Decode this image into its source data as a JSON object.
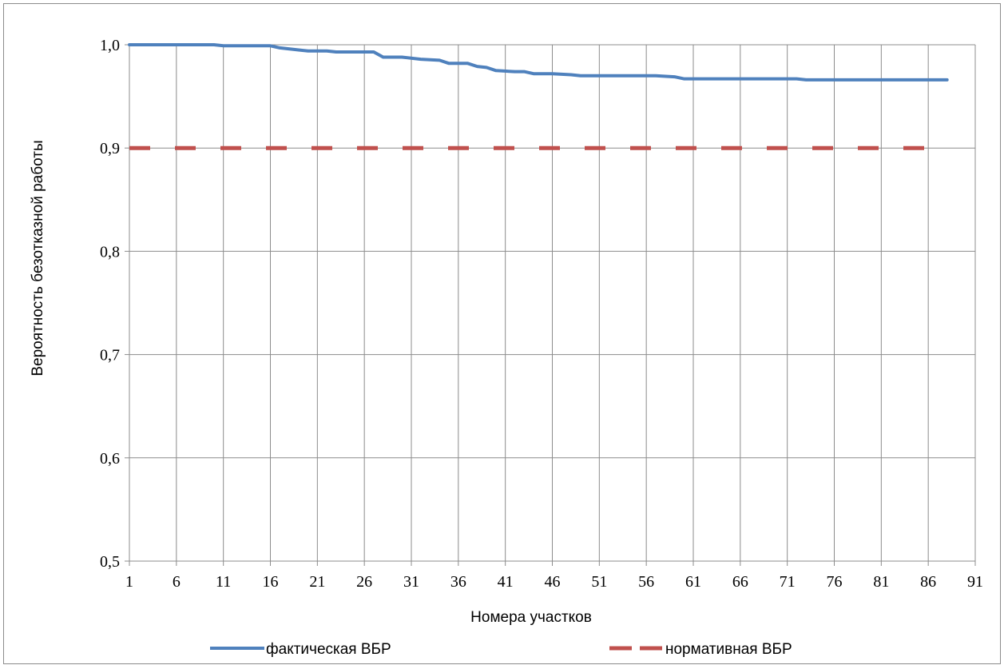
{
  "chart_data": {
    "type": "line",
    "title": "",
    "xlabel": "Номера участков",
    "ylabel": "Вероятность безотказной работы",
    "xlim": [
      1,
      91
    ],
    "ylim": [
      0.5,
      1.0
    ],
    "x_ticks": [
      "1",
      "6",
      "11",
      "16",
      "21",
      "26",
      "31",
      "36",
      "41",
      "46",
      "51",
      "56",
      "61",
      "66",
      "71",
      "76",
      "81",
      "86",
      "91"
    ],
    "y_ticks": [
      "0,5",
      "0,6",
      "0,7",
      "0,8",
      "0,9",
      "1,0"
    ],
    "grid": true,
    "legend_position": "bottom",
    "series": [
      {
        "name": "фактическая ВБР",
        "color": "#4f81bd",
        "style": "solid",
        "points": [
          [
            1,
            1.0
          ],
          [
            5,
            1.0
          ],
          [
            10,
            1.0
          ],
          [
            11,
            0.999
          ],
          [
            12,
            0.999
          ],
          [
            14,
            0.999
          ],
          [
            16,
            0.999
          ],
          [
            17,
            0.997
          ],
          [
            19,
            0.995
          ],
          [
            20,
            0.994
          ],
          [
            22,
            0.994
          ],
          [
            23,
            0.993
          ],
          [
            25,
            0.993
          ],
          [
            27,
            0.993
          ],
          [
            28,
            0.988
          ],
          [
            30,
            0.988
          ],
          [
            32,
            0.986
          ],
          [
            34,
            0.985
          ],
          [
            35,
            0.982
          ],
          [
            37,
            0.982
          ],
          [
            38,
            0.979
          ],
          [
            39,
            0.978
          ],
          [
            40,
            0.975
          ],
          [
            42,
            0.974
          ],
          [
            43,
            0.974
          ],
          [
            44,
            0.972
          ],
          [
            46,
            0.972
          ],
          [
            48,
            0.971
          ],
          [
            49,
            0.97
          ],
          [
            51,
            0.97
          ],
          [
            53,
            0.97
          ],
          [
            55,
            0.97
          ],
          [
            57,
            0.97
          ],
          [
            59,
            0.969
          ],
          [
            60,
            0.967
          ],
          [
            62,
            0.967
          ],
          [
            65,
            0.967
          ],
          [
            68,
            0.967
          ],
          [
            71,
            0.967
          ],
          [
            72,
            0.967
          ],
          [
            73,
            0.966
          ],
          [
            75,
            0.966
          ],
          [
            78,
            0.966
          ],
          [
            81,
            0.966
          ],
          [
            84,
            0.966
          ],
          [
            86,
            0.966
          ],
          [
            88,
            0.966
          ]
        ]
      },
      {
        "name": "нормативная ВБР",
        "color": "#c0504d",
        "style": "dashed",
        "points": [
          [
            1,
            0.9
          ],
          [
            88,
            0.9
          ]
        ]
      }
    ]
  }
}
